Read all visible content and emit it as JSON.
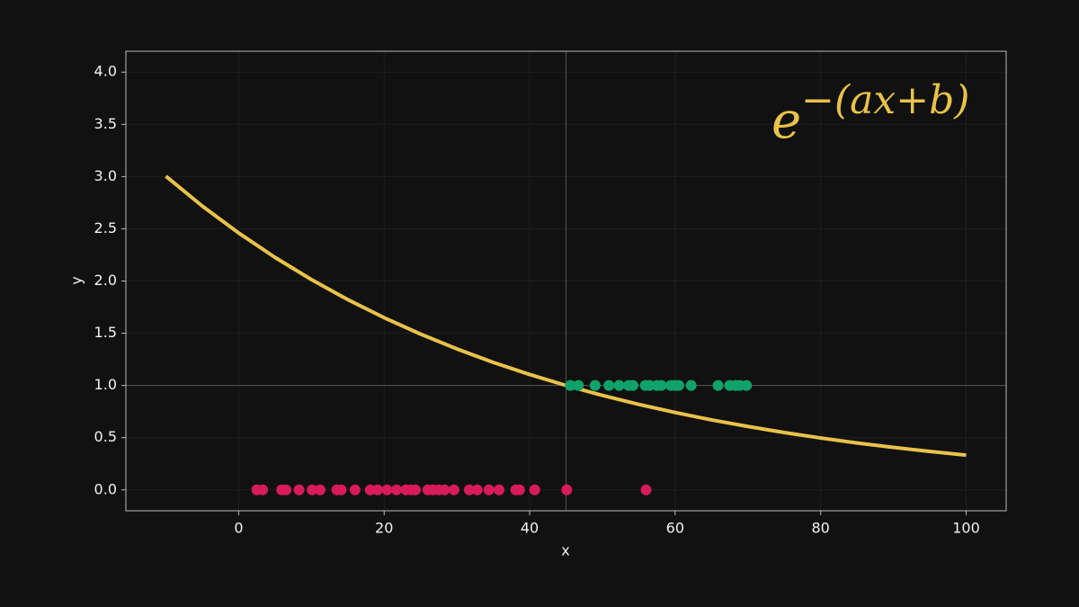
{
  "chart_data": {
    "type": "line",
    "xlabel": "x",
    "ylabel": "y",
    "xlim": [
      -15.5,
      105.5
    ],
    "ylim": [
      -0.2,
      4.2
    ],
    "xticks": [
      0,
      20,
      40,
      60,
      80,
      100
    ],
    "yticks": [
      {
        "value": 0,
        "label": "0.0"
      },
      0.5,
      {
        "value": 1,
        "label": "1.0"
      },
      1.5,
      {
        "value": 2,
        "label": "2.0"
      },
      2.5,
      {
        "value": 3,
        "label": "3.0"
      },
      3.5,
      {
        "value": 4,
        "label": "4.0"
      }
    ],
    "grid": true,
    "vlines": [
      45
    ],
    "hlines": [
      1
    ],
    "annotation": {
      "base": "e",
      "exponent": "−(ax+b)",
      "color": "#e8c24a"
    },
    "series": [
      {
        "type": "line",
        "color": "#e8c24a",
        "x": [
          -10,
          -5,
          0,
          5,
          10,
          15,
          20,
          25,
          30,
          35,
          40,
          45,
          50,
          55,
          60,
          65,
          70,
          75,
          80,
          85,
          90,
          95,
          100
        ],
        "values": [
          3.004,
          2.718,
          2.46,
          2.226,
          2.014,
          1.822,
          1.649,
          1.492,
          1.35,
          1.221,
          1.105,
          1.0,
          0.905,
          0.819,
          0.741,
          0.67,
          0.607,
          0.549,
          0.497,
          0.449,
          0.407,
          0.368,
          0.333
        ]
      },
      {
        "type": "scatter",
        "color": "#d81b5a",
        "x": [
          2.5,
          3.3,
          5.9,
          6.5,
          8.3,
          10.1,
          11.2,
          13.5,
          14.1,
          16.0,
          18.1,
          19.1,
          20.4,
          21.7,
          23.0,
          23.7,
          24.3,
          26.0,
          26.7,
          27.5,
          28.3,
          29.6,
          31.7,
          32.8,
          34.4,
          35.8,
          38.1,
          38.6,
          40.7,
          45.1,
          56.0
        ],
        "values": [
          0,
          0,
          0,
          0,
          0,
          0,
          0,
          0,
          0,
          0,
          0,
          0,
          0,
          0,
          0,
          0,
          0,
          0,
          0,
          0,
          0,
          0,
          0,
          0,
          0,
          0,
          0,
          0,
          0,
          0,
          0
        ]
      },
      {
        "type": "scatter",
        "color": "#0fa36b",
        "x": [
          45.6,
          46.7,
          49.0,
          50.9,
          52.3,
          53.6,
          54.2,
          55.9,
          56.5,
          57.5,
          58.1,
          59.4,
          60.0,
          60.5,
          62.2,
          65.9,
          67.5,
          68.3,
          68.9,
          69.8
        ],
        "values": [
          1,
          1,
          1,
          1,
          1,
          1,
          1,
          1,
          1,
          1,
          1,
          1,
          1,
          1,
          1,
          1,
          1,
          1,
          1,
          1
        ]
      }
    ]
  }
}
